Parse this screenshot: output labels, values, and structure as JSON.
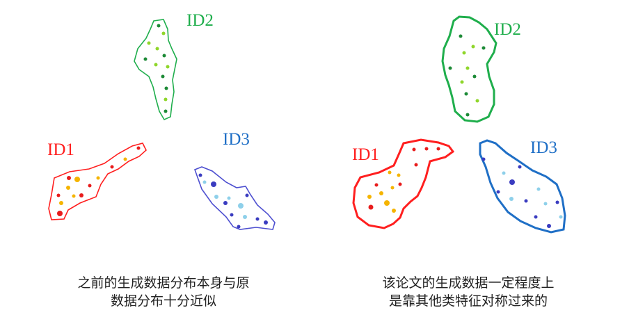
{
  "colors": {
    "id1": "#ff1f1f",
    "id2": "#1fae4c",
    "id3": "#1f6fc6",
    "id3_old": "#4d4fd0"
  },
  "left": {
    "labels": {
      "id1": "ID1",
      "id2": "ID2",
      "id3": "ID3"
    },
    "caption": [
      "之前的生成数据分布本身与原",
      "数据分布十分近似"
    ]
  },
  "right": {
    "labels": {
      "id1": "ID1",
      "id2": "ID2",
      "id3": "ID3"
    },
    "caption": [
      "该论文的生成数据一定程度上",
      "是靠其他类特征对称过来的"
    ]
  }
}
